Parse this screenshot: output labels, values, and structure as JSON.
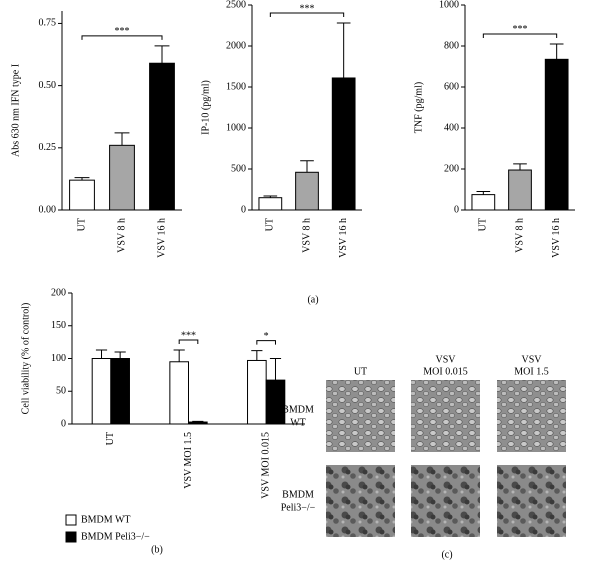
{
  "chart_data": [
    {
      "type": "bar",
      "y_label": "Abs 630 nm IFN type I",
      "categories": [
        "UT",
        "VSV 8 h",
        "VSV 16 h"
      ],
      "values": [
        0.12,
        0.26,
        0.59
      ],
      "errors": [
        0.01,
        0.05,
        0.07
      ],
      "colors": [
        "#ffffff",
        "#a6a6a6",
        "#000000"
      ],
      "ylim": [
        0,
        0.8
      ],
      "yticks": [
        {
          "value": 0,
          "label": "0.00"
        },
        {
          "value": 0.25,
          "label": "0.25"
        },
        {
          "value": 0.5,
          "label": "0.50"
        },
        {
          "value": 0.75,
          "label": "0.75"
        }
      ],
      "annotations": [
        {
          "text": "***",
          "between": [
            0,
            2
          ]
        }
      ]
    },
    {
      "type": "bar",
      "y_label": "IP-10 (pg/ml)",
      "categories": [
        "UT",
        "VSV 8 h",
        "VSV 16 h"
      ],
      "values": [
        150,
        460,
        1610
      ],
      "errors": [
        20,
        140,
        670
      ],
      "colors": [
        "#ffffff",
        "#a6a6a6",
        "#000000"
      ],
      "ylim": [
        0,
        2500
      ],
      "yticks": [
        0,
        500,
        1000,
        1500,
        2000,
        2500
      ],
      "annotations": [
        {
          "text": "***",
          "between": [
            0,
            2
          ]
        }
      ]
    },
    {
      "type": "bar",
      "y_label": "TNF (pg/ml)",
      "categories": [
        "UT",
        "VSV 8 h",
        "VSV 16 h"
      ],
      "values": [
        75,
        195,
        735
      ],
      "errors": [
        15,
        30,
        75
      ],
      "colors": [
        "#ffffff",
        "#a6a6a6",
        "#000000"
      ],
      "ylim": [
        0,
        1000
      ],
      "yticks": [
        0,
        200,
        400,
        600,
        800,
        1000
      ],
      "annotations": [
        {
          "text": "***",
          "between": [
            0,
            2
          ]
        }
      ]
    },
    {
      "type": "grouped_bar",
      "y_label": "Cell viability (% of control)",
      "categories": [
        "UT",
        "VSV MOI 1.5",
        "VSV MOI 0.015"
      ],
      "series": [
        {
          "name": "BMDM WT",
          "color": "#ffffff",
          "values": [
            100,
            95,
            97
          ],
          "errors": [
            13,
            18,
            15
          ]
        },
        {
          "name": "BMDM Peli3−/−",
          "color": "#000000",
          "values": [
            100,
            3,
            67
          ],
          "errors": [
            10,
            1,
            33
          ]
        }
      ],
      "ylim": [
        0,
        200
      ],
      "yticks": [
        0,
        50,
        100,
        150,
        200
      ],
      "legend": "below",
      "annotations": [
        {
          "text": "***",
          "category": 1
        },
        {
          "text": "*",
          "category": 2
        }
      ]
    }
  ],
  "panel_labels": [
    "(a)",
    "(b)",
    "(c)"
  ],
  "micrographs": {
    "columns": [
      [
        "UT"
      ],
      [
        "VSV",
        "MOI 0.015"
      ],
      [
        "VSV",
        "MOI 1.5"
      ]
    ],
    "rows": [
      [
        "BMDM",
        "WT"
      ],
      [
        "BMDM",
        "Peli3−/−"
      ]
    ]
  }
}
